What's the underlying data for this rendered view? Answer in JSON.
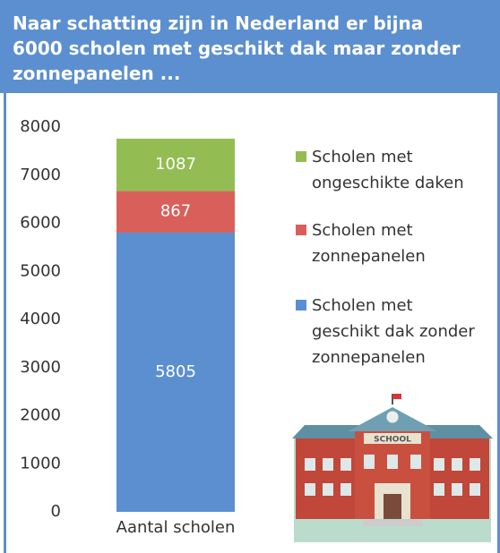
{
  "title": "Naar schatting zijn in Nederland er bijna 6000 scholen met geschikt dak maar zonder zonnepanelen ...",
  "chart_data": {
    "type": "stacked_bar",
    "categories": [
      "Aantal scholen"
    ],
    "series": [
      {
        "name": "Scholen met\ngeschikt dak zonder\nzonnepanelen",
        "color": "#5b8fd0",
        "values": [
          5805
        ]
      },
      {
        "name": "Scholen met\nzonnepanelen",
        "color": "#d9605a",
        "values": [
          867
        ]
      },
      {
        "name": "Scholen met\nongeschikte daken",
        "color": "#93bd52",
        "values": [
          1087
        ]
      }
    ],
    "ylim": [
      0,
      8000
    ],
    "yticks": [
      0,
      1000,
      2000,
      3000,
      4000,
      5000,
      6000,
      7000,
      8000
    ],
    "grid": false
  }
}
